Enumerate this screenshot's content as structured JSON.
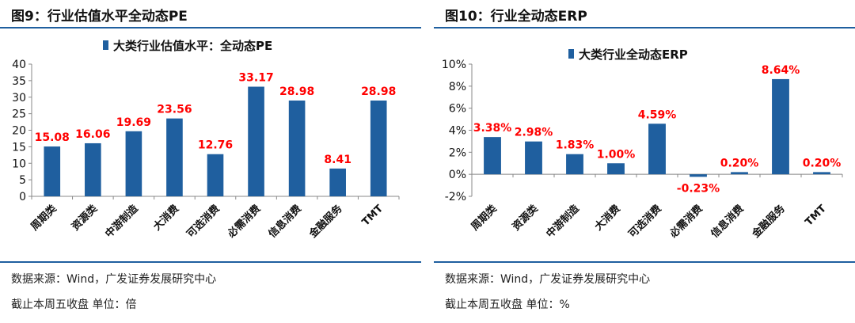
{
  "left": {
    "title": "图9：行业估值水平全动态PE",
    "source": "数据来源：Wind，广发证券发展研究中心",
    "note": "截止本周五收盘 单位：倍",
    "bar_color": "#1f5f9f",
    "label_color": "#ff0000",
    "chart_data": {
      "type": "bar",
      "title": "",
      "xlabel": "",
      "ylabel": "",
      "categories": [
        "周期类",
        "资源类",
        "中游制造",
        "大消费",
        "可选消费",
        "必需消费",
        "信息消费",
        "金融服务",
        "TMT"
      ],
      "series": [
        {
          "name": "大类行业估值水平：全动态PE",
          "values": [
            15.08,
            16.06,
            19.69,
            23.56,
            12.76,
            33.17,
            28.98,
            8.41,
            28.98
          ],
          "labels": [
            "15.08",
            "16.06",
            "19.69",
            "23.56",
            "12.76",
            "33.17",
            "28.98",
            "8.41",
            "28.98"
          ]
        }
      ],
      "ylim": [
        0,
        40
      ],
      "yticks": [
        0,
        5,
        10,
        15,
        20,
        25,
        30,
        35,
        40
      ],
      "ytick_labels": [
        "0",
        "5",
        "10",
        "15",
        "20",
        "25",
        "30",
        "35",
        "40"
      ],
      "grid": false,
      "legend": "top-center"
    }
  },
  "right": {
    "title": "图10：行业全动态ERP",
    "source": "数据来源：Wind，广发证券发展研究中心",
    "note": "截止本周五收盘 单位：%",
    "bar_color": "#1f5f9f",
    "label_color": "#ff0000",
    "chart_data": {
      "type": "bar",
      "title": "",
      "xlabel": "",
      "ylabel": "",
      "categories": [
        "周期类",
        "资源类",
        "中游制造",
        "大消费",
        "可选消费",
        "必需消费",
        "信息消费",
        "金融服务",
        "TMT"
      ],
      "series": [
        {
          "name": "大类行业全动态ERP",
          "values": [
            3.38,
            2.98,
            1.83,
            1.0,
            4.59,
            -0.23,
            0.2,
            8.64,
            0.2
          ],
          "labels": [
            "3.38%",
            "2.98%",
            "1.83%",
            "1.00%",
            "4.59%",
            "-0.23%",
            "0.20%",
            "8.64%",
            "0.20%"
          ]
        }
      ],
      "ylim": [
        -2,
        10
      ],
      "yticks": [
        -2,
        0,
        2,
        4,
        6,
        8,
        10
      ],
      "ytick_labels": [
        "-2%",
        "0%",
        "2%",
        "4%",
        "6%",
        "8%",
        "10%"
      ],
      "grid": false,
      "legend": "top-center"
    }
  }
}
